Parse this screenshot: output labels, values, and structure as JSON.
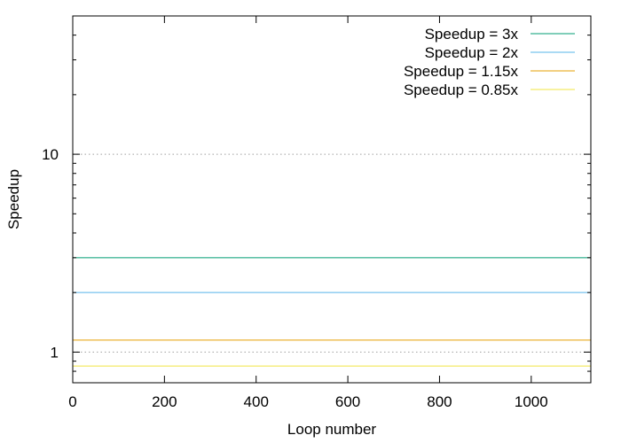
{
  "chart_data": {
    "type": "line",
    "title": "",
    "xlabel": "Loop number",
    "ylabel": "Speedup",
    "xlim": [
      0,
      1130
    ],
    "ylim": [
      0.7,
      50
    ],
    "yscale": "log",
    "x_ticks": [
      0,
      200,
      400,
      600,
      800,
      1000
    ],
    "x_tick_labels": [
      "0",
      "200",
      "400",
      "600",
      "800",
      "1000"
    ],
    "y_ticks": [
      1,
      10
    ],
    "y_tick_labels": [
      "1",
      "10"
    ],
    "y_minor_ticks": [
      0.7,
      0.8,
      0.9,
      2,
      3,
      4,
      5,
      6,
      7,
      8,
      9,
      20,
      30,
      40,
      50
    ],
    "grid": "dotted horizontal at major y ticks",
    "legend_position": "top-right",
    "series": [
      {
        "name": "Speedup = 3x",
        "color": "#009e73",
        "x": [
          0,
          1130
        ],
        "values": [
          3,
          3
        ]
      },
      {
        "name": "Speedup = 2x",
        "color": "#56b4e9",
        "x": [
          0,
          1130
        ],
        "values": [
          2,
          2
        ]
      },
      {
        "name": "Speedup = 1.15x",
        "color": "#e69f00",
        "x": [
          0,
          1130
        ],
        "values": [
          1.15,
          1.15
        ]
      },
      {
        "name": "Speedup = 0.85x",
        "color": "#f0e442",
        "x": [
          0,
          1130
        ],
        "values": [
          0.85,
          0.85
        ]
      }
    ]
  }
}
